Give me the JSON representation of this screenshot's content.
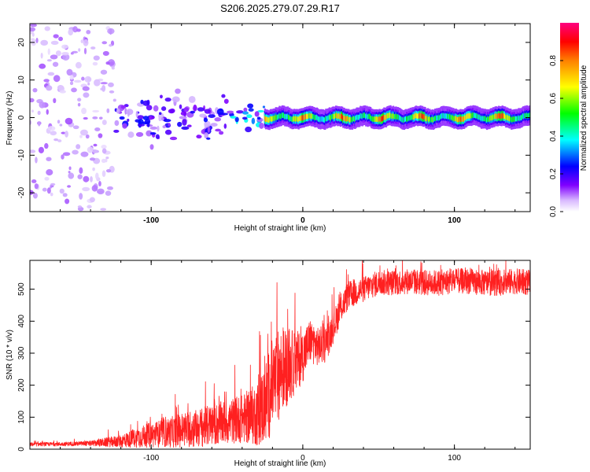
{
  "title": "S206.2025.279.07.29.R17",
  "chart_data": [
    {
      "type": "heatmap",
      "xlabel": "Height of straight line (km)",
      "ylabel": "Frequency (Hz)",
      "xlim": [
        -180,
        150
      ],
      "ylim": [
        -25,
        25
      ],
      "xticks": [
        -100,
        0,
        100
      ],
      "xtick_labels": [
        "-100",
        "0",
        "100"
      ],
      "yticks": [
        20,
        10,
        0,
        -10,
        -20
      ],
      "ytick_labels": [
        "20",
        "10",
        "0",
        "-10",
        "-20"
      ],
      "colorbar": {
        "label": "Normalized spectral amplitude",
        "range": [
          0,
          1
        ],
        "ticks": [
          0.0,
          0.2,
          0.4,
          0.6,
          0.8
        ],
        "tick_labels": [
          "0.0",
          "0.2",
          "0.4",
          "0.6",
          "0.8"
        ],
        "colormap": [
          "#ffffff",
          "#c8a0ff",
          "#8000ff",
          "#0000ff",
          "#00ffff",
          "#00ff00",
          "#ffff00",
          "#ff8000",
          "#ff0000",
          "#ff00a0"
        ]
      },
      "features": [
        {
          "description": "scattered low-amplitude speckle",
          "x_range": [
            -180,
            -125
          ],
          "freq_range": [
            -25,
            25
          ],
          "amplitude": 0.1
        },
        {
          "description": "broad noisy blob",
          "x_range": [
            -125,
            -50
          ],
          "freq_range": [
            -10,
            8
          ],
          "amplitude": 0.2
        },
        {
          "description": "narrowing blob",
          "x_range": [
            -50,
            -25
          ],
          "freq_range": [
            -5,
            5
          ],
          "amplitude": 0.35
        },
        {
          "description": "coherent carrier line",
          "x_range": [
            -25,
            150
          ],
          "freq_range": [
            -2,
            2
          ],
          "amplitude": 0.9
        }
      ]
    },
    {
      "type": "line",
      "xlabel": "Height of straight line (km)",
      "ylabel": "SNR (10 * v/v)",
      "xlim": [
        -180,
        150
      ],
      "ylim": [
        0,
        590
      ],
      "xticks": [
        -100,
        0,
        100
      ],
      "xtick_labels": [
        "-100",
        "0",
        "100"
      ],
      "yticks": [
        0,
        100,
        200,
        300,
        400,
        500
      ],
      "ytick_labels": [
        "0",
        "100",
        "200",
        "300",
        "400",
        "500"
      ],
      "color": "#ff2020",
      "series": [
        {
          "name": "SNR",
          "x": [
            -180,
            -160,
            -140,
            -120,
            -110,
            -100,
            -90,
            -80,
            -70,
            -60,
            -50,
            -40,
            -30,
            -25,
            -20,
            -15,
            -10,
            -5,
            0,
            5,
            10,
            15,
            20,
            25,
            30,
            40,
            50,
            60,
            70,
            80,
            90,
            100,
            110,
            120,
            130,
            140,
            150
          ],
          "values": [
            15,
            16,
            18,
            25,
            35,
            45,
            50,
            60,
            65,
            75,
            85,
            95,
            110,
            140,
            200,
            240,
            260,
            270,
            290,
            340,
            320,
            330,
            380,
            440,
            480,
            500,
            520,
            520,
            525,
            520,
            520,
            525,
            525,
            520,
            520,
            525,
            520
          ],
          "noise": [
            6,
            6,
            8,
            20,
            30,
            40,
            45,
            55,
            60,
            65,
            70,
            75,
            100,
            130,
            150,
            140,
            120,
            100,
            80,
            70,
            60,
            60,
            50,
            45,
            45,
            40,
            40,
            40,
            40,
            40,
            40,
            40,
            40,
            40,
            40,
            40,
            40
          ]
        }
      ]
    }
  ]
}
